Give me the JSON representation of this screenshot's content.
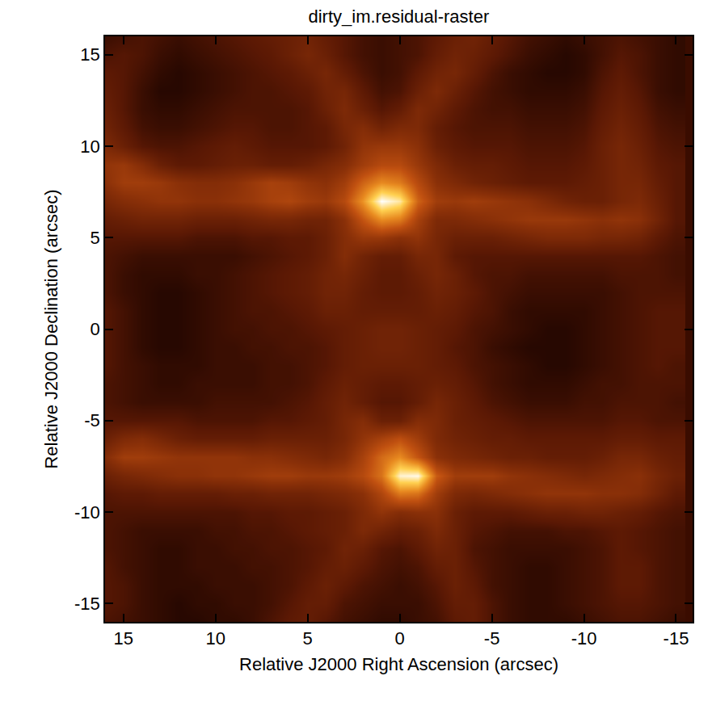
{
  "chart_data": {
    "type": "heatmap",
    "title": "dirty_im.residual-raster",
    "x_label": "Relative J2000 Right Ascension (arcsec)",
    "y_label": "Relative J2000 Declination (arcsec)",
    "xlim": [
      16,
      -15.9
    ],
    "ylim": [
      -16,
      16
    ],
    "xticks": [
      15,
      10,
      5,
      0,
      -5,
      -10,
      -15
    ],
    "yticks": [
      -15,
      -10,
      -5,
      0,
      5,
      10,
      15
    ],
    "zlim": [
      0,
      100
    ],
    "x": [
      16,
      15,
      14,
      13,
      12,
      11,
      10,
      9,
      8,
      7,
      6,
      5,
      4,
      3,
      2,
      1,
      0,
      -1,
      -2,
      -3,
      -4,
      -5,
      -6,
      -7,
      -8,
      -9,
      -10,
      -11,
      -12,
      -13,
      -14,
      -15
    ],
    "y": [
      16,
      15,
      14,
      13,
      12,
      11,
      10,
      9,
      8,
      7,
      6,
      5,
      4,
      3,
      2,
      1,
      0,
      -1,
      -2,
      -3,
      -4,
      -5,
      -6,
      -7,
      -8,
      -9,
      -10,
      -11,
      -12,
      -13,
      -14,
      -15,
      -16
    ],
    "cells": [
      [
        18,
        20,
        22,
        20,
        18,
        20,
        22,
        24,
        26,
        28,
        30,
        32,
        28,
        24,
        20,
        18,
        20,
        22,
        26,
        30,
        32,
        28,
        24,
        20,
        18,
        16,
        18,
        20,
        22,
        20,
        18,
        16
      ],
      [
        22,
        24,
        22,
        18,
        16,
        18,
        20,
        22,
        24,
        26,
        30,
        34,
        30,
        24,
        20,
        18,
        20,
        22,
        28,
        32,
        30,
        26,
        22,
        18,
        16,
        14,
        16,
        20,
        24,
        22,
        18,
        16
      ],
      [
        26,
        24,
        20,
        16,
        14,
        16,
        18,
        20,
        22,
        24,
        26,
        30,
        34,
        28,
        22,
        18,
        20,
        26,
        32,
        34,
        28,
        22,
        18,
        16,
        14,
        14,
        16,
        22,
        26,
        22,
        18,
        16
      ],
      [
        28,
        24,
        18,
        14,
        14,
        16,
        18,
        20,
        22,
        22,
        24,
        26,
        32,
        34,
        26,
        20,
        22,
        30,
        36,
        30,
        24,
        20,
        18,
        16,
        16,
        16,
        18,
        24,
        28,
        24,
        18,
        16
      ],
      [
        30,
        24,
        18,
        16,
        16,
        18,
        20,
        22,
        22,
        22,
        22,
        24,
        30,
        36,
        30,
        24,
        28,
        36,
        32,
        26,
        22,
        20,
        20,
        18,
        18,
        18,
        20,
        26,
        30,
        26,
        20,
        18
      ],
      [
        32,
        26,
        20,
        18,
        18,
        20,
        22,
        24,
        24,
        22,
        22,
        24,
        26,
        34,
        38,
        32,
        36,
        36,
        28,
        24,
        22,
        22,
        22,
        20,
        20,
        20,
        22,
        28,
        32,
        28,
        22,
        20
      ],
      [
        36,
        30,
        24,
        22,
        22,
        24,
        26,
        28,
        26,
        24,
        24,
        24,
        26,
        32,
        42,
        44,
        44,
        40,
        30,
        26,
        24,
        24,
        24,
        22,
        22,
        22,
        24,
        30,
        34,
        30,
        24,
        22
      ],
      [
        42,
        44,
        38,
        30,
        26,
        26,
        28,
        30,
        30,
        28,
        28,
        30,
        34,
        38,
        46,
        52,
        52,
        44,
        36,
        30,
        28,
        28,
        26,
        24,
        24,
        24,
        26,
        30,
        34,
        32,
        26,
        24
      ],
      [
        40,
        46,
        46,
        44,
        40,
        38,
        38,
        40,
        44,
        48,
        46,
        42,
        40,
        46,
        60,
        70,
        66,
        52,
        40,
        36,
        32,
        30,
        28,
        26,
        26,
        26,
        28,
        30,
        34,
        34,
        28,
        24
      ],
      [
        34,
        38,
        40,
        42,
        42,
        40,
        40,
        42,
        44,
        48,
        50,
        46,
        44,
        52,
        72,
        100,
        92,
        60,
        46,
        44,
        46,
        44,
        42,
        40,
        36,
        32,
        30,
        30,
        34,
        36,
        30,
        24
      ],
      [
        28,
        30,
        32,
        32,
        32,
        30,
        30,
        30,
        32,
        34,
        34,
        32,
        32,
        40,
        56,
        70,
        66,
        48,
        36,
        36,
        38,
        40,
        42,
        44,
        44,
        44,
        42,
        40,
        42,
        40,
        32,
        24
      ],
      [
        24,
        24,
        24,
        24,
        24,
        22,
        22,
        22,
        24,
        24,
        26,
        26,
        30,
        38,
        44,
        44,
        40,
        42,
        34,
        30,
        30,
        30,
        32,
        34,
        36,
        36,
        36,
        34,
        34,
        32,
        26,
        22
      ],
      [
        22,
        20,
        18,
        18,
        18,
        18,
        18,
        18,
        20,
        22,
        24,
        26,
        30,
        38,
        32,
        28,
        28,
        34,
        34,
        26,
        24,
        24,
        24,
        24,
        24,
        24,
        24,
        24,
        24,
        24,
        22,
        20
      ],
      [
        22,
        18,
        16,
        16,
        16,
        18,
        18,
        20,
        22,
        24,
        26,
        28,
        32,
        34,
        30,
        26,
        26,
        30,
        34,
        30,
        24,
        22,
        22,
        20,
        20,
        20,
        20,
        20,
        22,
        22,
        22,
        20
      ],
      [
        22,
        18,
        16,
        14,
        14,
        16,
        18,
        20,
        22,
        24,
        26,
        28,
        32,
        32,
        28,
        26,
        26,
        28,
        32,
        30,
        26,
        22,
        20,
        18,
        18,
        18,
        18,
        18,
        20,
        22,
        22,
        22
      ],
      [
        24,
        20,
        16,
        14,
        14,
        16,
        18,
        20,
        22,
        22,
        24,
        26,
        30,
        30,
        28,
        28,
        28,
        28,
        30,
        28,
        24,
        22,
        18,
        16,
        16,
        16,
        16,
        18,
        20,
        22,
        24,
        24
      ],
      [
        24,
        20,
        16,
        14,
        14,
        16,
        18,
        20,
        20,
        22,
        22,
        24,
        26,
        28,
        30,
        32,
        32,
        30,
        28,
        26,
        22,
        20,
        18,
        16,
        14,
        14,
        16,
        18,
        20,
        22,
        24,
        24
      ],
      [
        24,
        20,
        16,
        14,
        14,
        16,
        18,
        18,
        20,
        20,
        22,
        22,
        24,
        28,
        30,
        32,
        32,
        30,
        28,
        24,
        22,
        18,
        16,
        14,
        14,
        14,
        16,
        18,
        20,
        22,
        24,
        24
      ],
      [
        24,
        20,
        18,
        16,
        16,
        16,
        18,
        18,
        18,
        20,
        20,
        22,
        24,
        28,
        30,
        30,
        30,
        30,
        28,
        26,
        22,
        20,
        18,
        16,
        14,
        14,
        16,
        18,
        20,
        22,
        24,
        22
      ],
      [
        22,
        20,
        18,
        16,
        16,
        18,
        18,
        18,
        18,
        20,
        20,
        22,
        26,
        30,
        28,
        26,
        26,
        28,
        30,
        28,
        24,
        20,
        18,
        16,
        16,
        16,
        18,
        20,
        20,
        22,
        22,
        22
      ],
      [
        22,
        20,
        18,
        18,
        18,
        18,
        20,
        20,
        20,
        20,
        22,
        24,
        28,
        32,
        28,
        24,
        24,
        28,
        34,
        30,
        26,
        22,
        20,
        18,
        18,
        18,
        20,
        20,
        22,
        22,
        22,
        20
      ],
      [
        24,
        24,
        24,
        24,
        24,
        22,
        22,
        22,
        22,
        24,
        24,
        26,
        28,
        34,
        38,
        30,
        30,
        38,
        36,
        30,
        28,
        26,
        24,
        22,
        22,
        22,
        22,
        22,
        24,
        24,
        22,
        22
      ],
      [
        30,
        36,
        38,
        34,
        30,
        28,
        28,
        28,
        28,
        30,
        30,
        30,
        30,
        34,
        42,
        48,
        54,
        46,
        36,
        32,
        30,
        28,
        28,
        26,
        26,
        26,
        26,
        26,
        28,
        28,
        26,
        26
      ],
      [
        38,
        46,
        46,
        44,
        42,
        42,
        42,
        42,
        40,
        40,
        38,
        36,
        34,
        38,
        48,
        62,
        70,
        56,
        40,
        36,
        34,
        32,
        30,
        30,
        28,
        28,
        28,
        30,
        34,
        34,
        30,
        28
      ],
      [
        30,
        34,
        36,
        38,
        40,
        40,
        42,
        42,
        44,
        46,
        46,
        44,
        44,
        46,
        52,
        64,
        96,
        98,
        58,
        46,
        46,
        46,
        42,
        40,
        38,
        36,
        34,
        36,
        38,
        40,
        34,
        30
      ],
      [
        24,
        26,
        26,
        28,
        28,
        28,
        28,
        30,
        30,
        32,
        32,
        32,
        34,
        36,
        40,
        50,
        66,
        64,
        46,
        36,
        34,
        36,
        38,
        40,
        42,
        42,
        42,
        40,
        40,
        38,
        32,
        26
      ],
      [
        22,
        22,
        22,
        22,
        22,
        22,
        22,
        22,
        24,
        24,
        26,
        26,
        28,
        30,
        36,
        42,
        38,
        40,
        40,
        30,
        26,
        26,
        26,
        28,
        30,
        30,
        32,
        32,
        30,
        28,
        24,
        22
      ],
      [
        22,
        20,
        18,
        18,
        18,
        18,
        20,
        20,
        22,
        22,
        24,
        26,
        28,
        30,
        36,
        32,
        28,
        30,
        36,
        30,
        24,
        22,
        20,
        20,
        20,
        22,
        22,
        24,
        26,
        24,
        22,
        20
      ],
      [
        22,
        20,
        18,
        16,
        16,
        18,
        18,
        20,
        20,
        22,
        22,
        24,
        26,
        32,
        30,
        24,
        22,
        26,
        32,
        30,
        22,
        20,
        18,
        18,
        18,
        18,
        20,
        22,
        26,
        24,
        22,
        20
      ],
      [
        24,
        20,
        18,
        16,
        16,
        18,
        18,
        18,
        20,
        20,
        22,
        24,
        28,
        30,
        26,
        22,
        20,
        22,
        28,
        30,
        24,
        20,
        18,
        16,
        16,
        18,
        20,
        22,
        26,
        26,
        22,
        20
      ],
      [
        24,
        22,
        18,
        16,
        16,
        16,
        18,
        18,
        18,
        20,
        22,
        26,
        30,
        26,
        22,
        20,
        18,
        20,
        24,
        30,
        26,
        20,
        18,
        16,
        16,
        18,
        20,
        22,
        26,
        26,
        22,
        20
      ],
      [
        24,
        22,
        18,
        16,
        14,
        16,
        16,
        18,
        18,
        20,
        24,
        28,
        28,
        22,
        20,
        18,
        18,
        18,
        22,
        28,
        28,
        22,
        18,
        16,
        16,
        18,
        20,
        22,
        24,
        24,
        22,
        20
      ],
      [
        22,
        20,
        18,
        16,
        14,
        14,
        16,
        16,
        18,
        22,
        26,
        28,
        24,
        20,
        18,
        16,
        16,
        18,
        20,
        26,
        28,
        22,
        18,
        16,
        16,
        16,
        18,
        20,
        22,
        22,
        20,
        18
      ]
    ]
  }
}
